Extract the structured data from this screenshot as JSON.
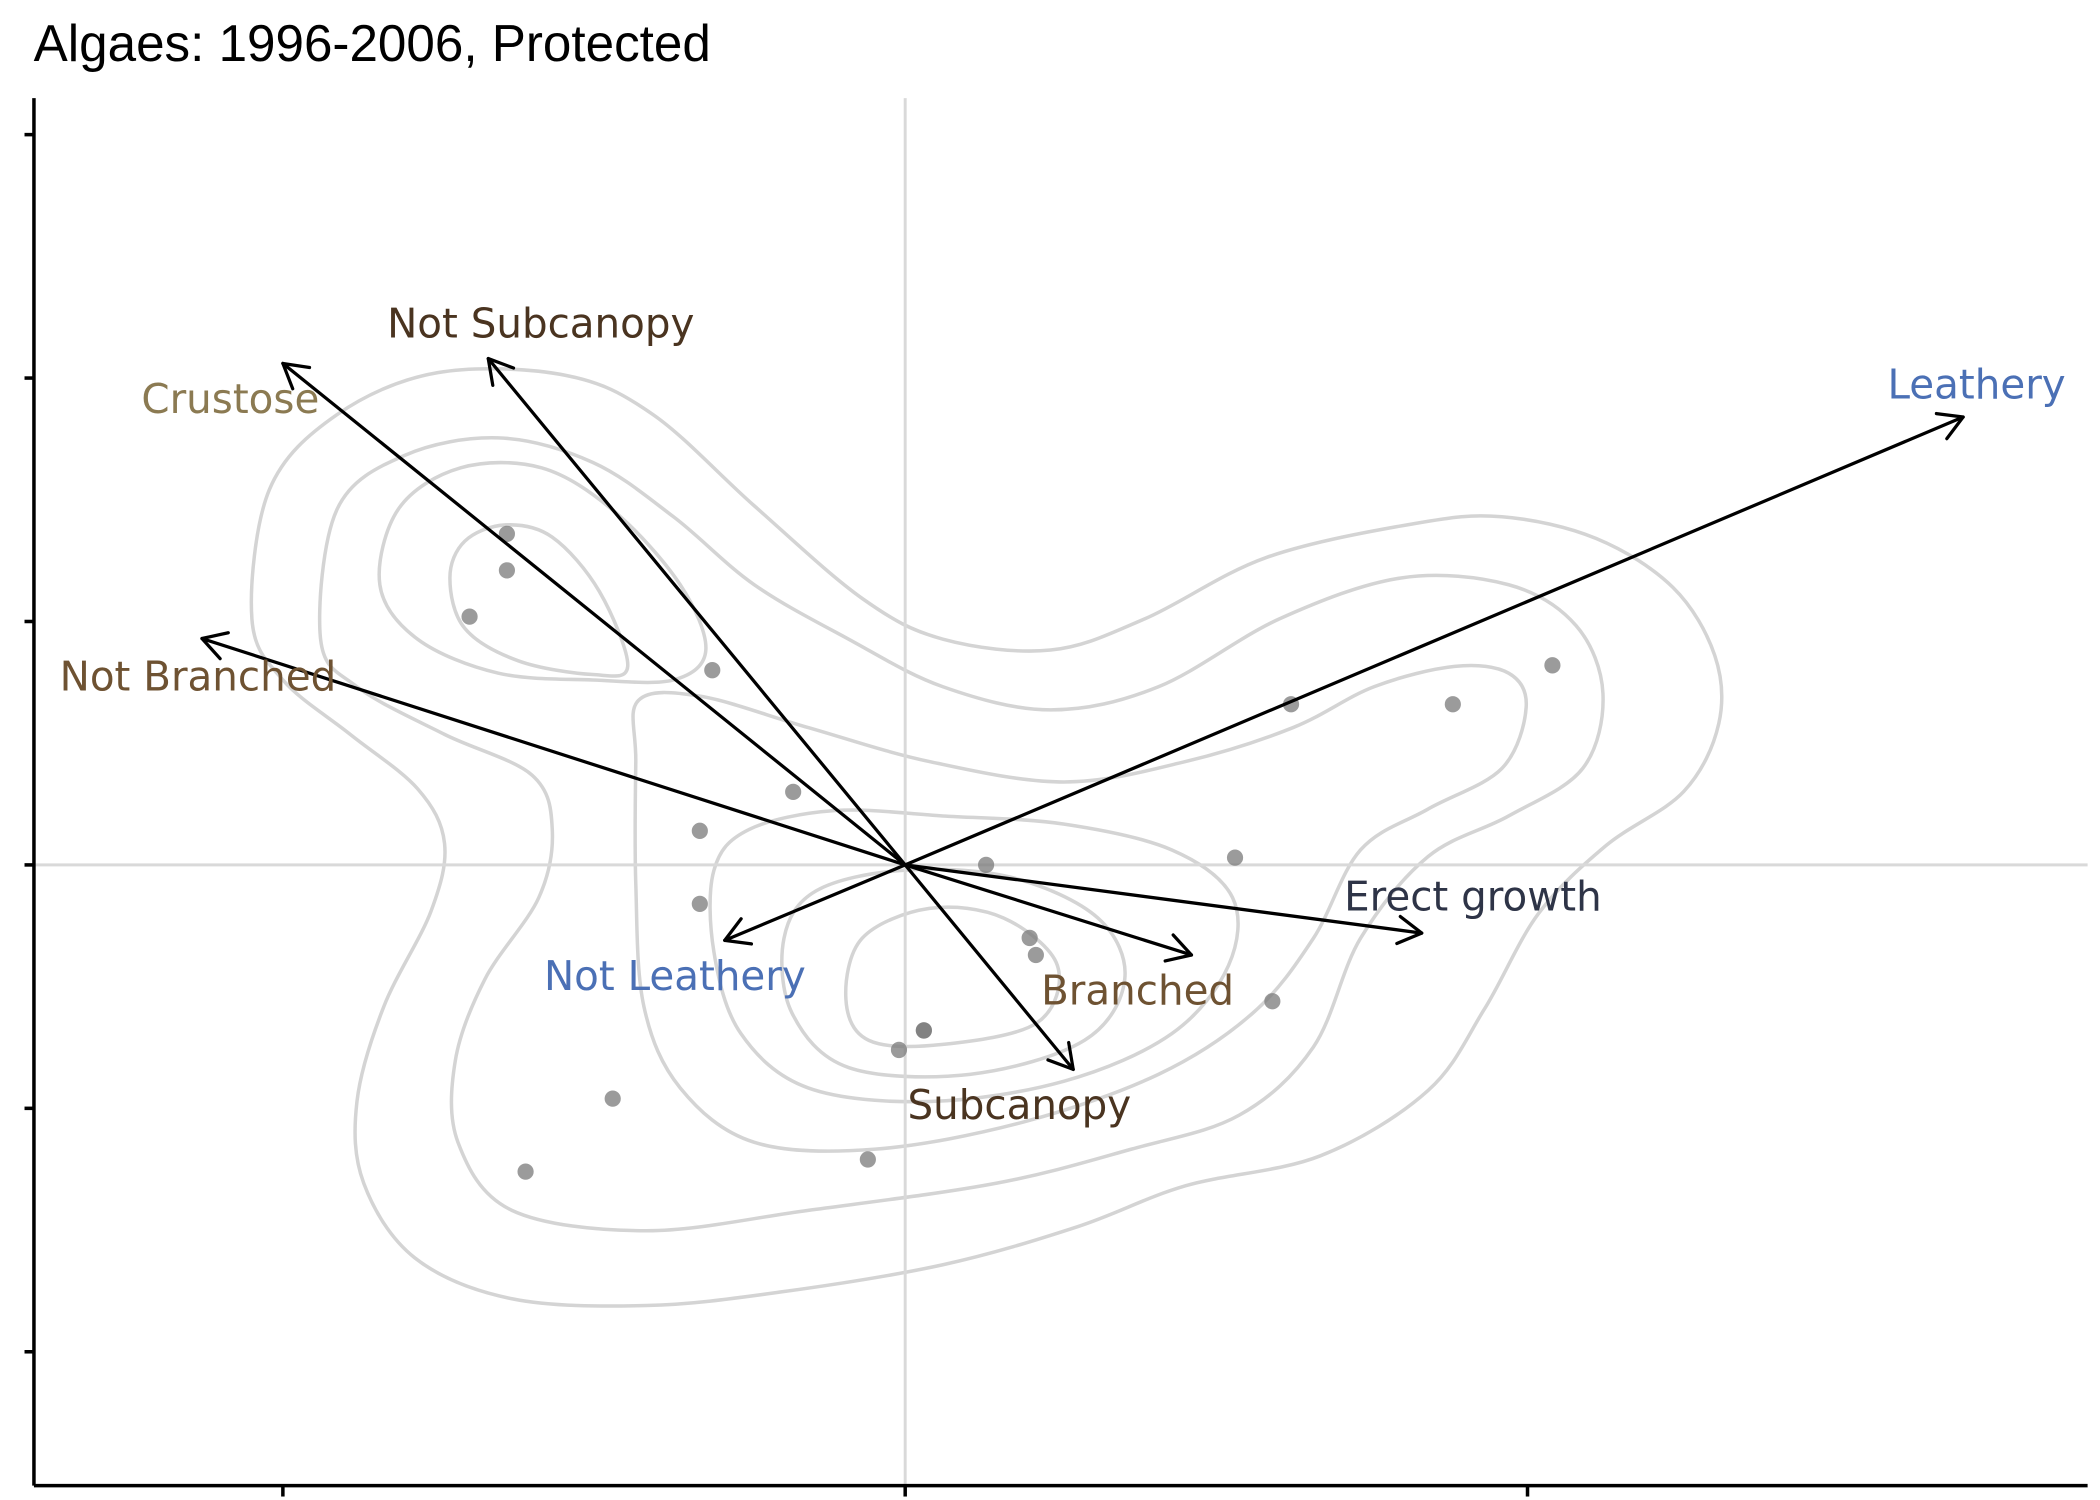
{
  "chart_data": {
    "type": "scatter",
    "subtype": "biplot",
    "title": "Algaes: 1996-2006, Protected",
    "xlabel": "",
    "ylabel": "",
    "xlim": [
      -1.4,
      1.9
    ],
    "ylim": [
      -2.55,
      3.15
    ],
    "xticks": [
      -1,
      0,
      1
    ],
    "yticks": [
      -2,
      -1,
      0,
      1,
      2,
      3
    ],
    "tick_labels_shown": false,
    "grid": false,
    "reference_lines": {
      "x": 0,
      "y": 0
    },
    "density_contours": true,
    "colors": {
      "points": "#7a7a7a",
      "contours": "#d4d4d4",
      "reference_lines": "#d9d9d9",
      "vectors": "#000000"
    },
    "points": {
      "x": [
        -0.64,
        -0.64,
        -0.7,
        -0.31,
        -0.18,
        -0.33,
        -0.33,
        0.13,
        0.53,
        0.62,
        0.88,
        1.04,
        0.2,
        0.21,
        0.59,
        0.03,
        0.03,
        -0.01,
        -0.47,
        -0.06,
        -0.61
      ],
      "y": [
        1.36,
        1.21,
        1.02,
        0.8,
        0.3,
        0.14,
        -0.16,
        0.0,
        0.03,
        0.66,
        0.66,
        0.82,
        -0.3,
        -0.37,
        -0.56,
        -0.68,
        -0.68,
        -0.76,
        -0.96,
        -1.21,
        -1.26
      ]
    },
    "vectors": [
      {
        "label": "Leathery",
        "x": 1.7,
        "y": 1.84,
        "color": "#4b70b5"
      },
      {
        "label": "Crustose",
        "x": -1.0,
        "y": 2.06,
        "color": "#8b7a52"
      },
      {
        "label": "Not Subcanopy",
        "x": -0.67,
        "y": 2.08,
        "color": "#4a3420"
      },
      {
        "label": "Not Branched",
        "x": -1.13,
        "y": 0.93,
        "color": "#6e5232"
      },
      {
        "label": "Not Leathery",
        "x": -0.29,
        "y": -0.31,
        "color": "#4b70b5"
      },
      {
        "label": "Branched",
        "x": 0.46,
        "y": -0.37,
        "color": "#6e5232"
      },
      {
        "label": "Erect growth",
        "x": 0.83,
        "y": -0.28,
        "color": "#2e3447"
      },
      {
        "label": "Subcanopy",
        "x": 0.27,
        "y": -0.84,
        "color": "#4a3420"
      }
    ]
  }
}
